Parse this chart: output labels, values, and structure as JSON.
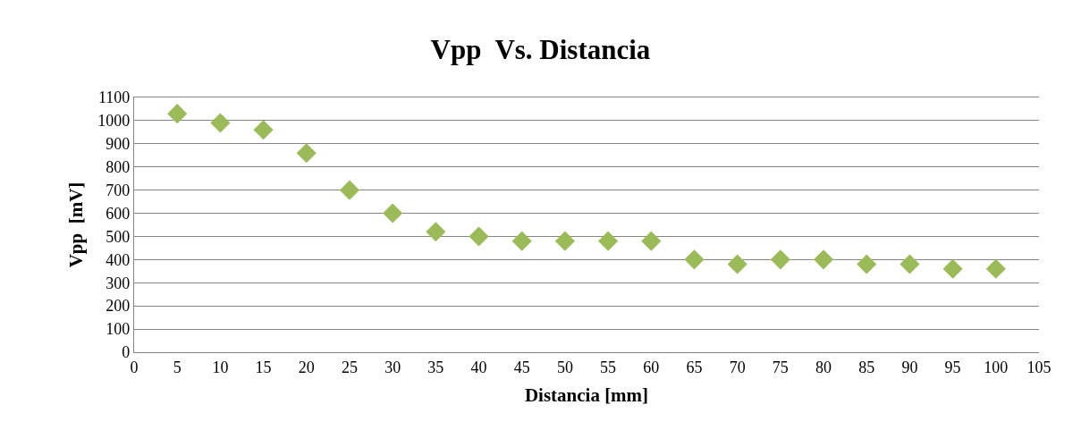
{
  "chart_data": {
    "type": "scatter",
    "title": "Vpp  Vs. Distancia",
    "xlabel": "Distancia [mm]",
    "ylabel": "Vpp  [mV]",
    "x": [
      5,
      10,
      15,
      20,
      25,
      30,
      35,
      40,
      45,
      50,
      55,
      60,
      65,
      70,
      75,
      80,
      85,
      90,
      95,
      100
    ],
    "series": [
      {
        "color": "#9bbb59",
        "values": [
          1030,
          990,
          960,
          860,
          700,
          600,
          520,
          500,
          480,
          480,
          480,
          480,
          400,
          380,
          400,
          400,
          380,
          380,
          360,
          360
        ]
      }
    ],
    "xlim": [
      0,
      105
    ],
    "xticks": [
      0,
      5,
      10,
      15,
      20,
      25,
      30,
      35,
      40,
      45,
      50,
      55,
      60,
      65,
      70,
      75,
      80,
      85,
      90,
      95,
      100,
      105
    ],
    "ylim": [
      0,
      1100
    ],
    "yticks": [
      0,
      100,
      200,
      300,
      400,
      500,
      600,
      700,
      800,
      900,
      1000,
      1100
    ],
    "grid": "y",
    "marker": "diamond"
  }
}
